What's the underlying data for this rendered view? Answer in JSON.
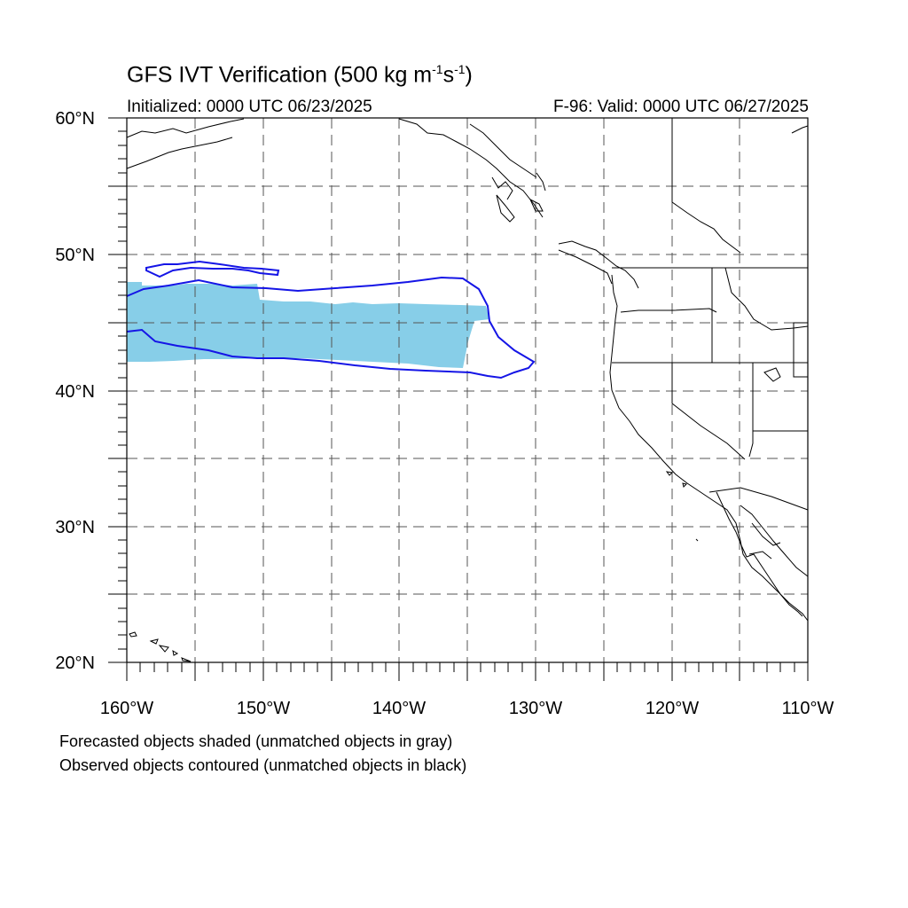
{
  "title": {
    "main": "GFS IVT Verification (500 kg m",
    "exp1": "-1",
    "mid": "s",
    "exp2": "-1",
    "end": ")"
  },
  "initialized": "Initialized: 0000 UTC 06/23/2025",
  "valid": "F-96: Valid: 0000 UTC 06/27/2025",
  "footer": {
    "line1": "Forecasted objects shaded (unmatched objects in gray)",
    "line2": "Observed objects contoured (unmatched objects in black)"
  },
  "axes": {
    "lat_labels": [
      "60°N",
      "50°N",
      "40°N",
      "30°N",
      "20°N"
    ],
    "lon_labels": [
      "160°W",
      "150°W",
      "140°W",
      "130°W",
      "120°W",
      "110°W"
    ],
    "lat_range": [
      20,
      60
    ],
    "lon_range": [
      -160,
      -110
    ]
  },
  "colors": {
    "forecast_fill": "#87CEE8",
    "observed_contour": "#1515E6",
    "coastline": "#000000",
    "grid": "#555555"
  }
}
